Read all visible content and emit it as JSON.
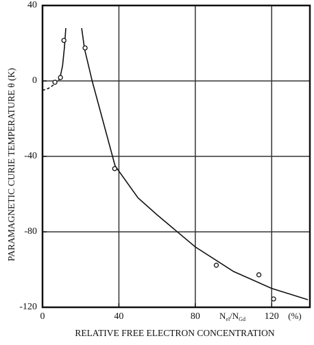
{
  "chart_data": {
    "type": "scatter",
    "xlabel": "RELATIVE FREE ELECTRON CONCENTRATION",
    "ylabel": "PARAMAGNETIC CURIE TEMPERATURE θ (K)",
    "unit_parts": [
      "N",
      "el",
      "/N",
      "Gd",
      "(%)"
    ],
    "x": [
      6.5,
      9.4,
      11.2,
      22.3,
      37.8,
      91,
      113.3,
      121
    ],
    "values": [
      -0.7,
      1.8,
      21.5,
      17.5,
      -46.5,
      -97.7,
      -102.8,
      -115.6
    ],
    "lines": [
      {
        "x": [
          0,
          3,
          6,
          9
        ],
        "y": [
          -5,
          -4,
          -2,
          1
        ],
        "dashed": true
      },
      {
        "x": [
          9,
          10.5,
          11.5,
          12.2
        ],
        "y": [
          1,
          8,
          18,
          28
        ],
        "dashed": false
      },
      {
        "x": [
          20.5,
          22,
          26,
          30,
          38,
          50,
          60,
          80,
          100,
          120,
          139
        ],
        "y": [
          28,
          17,
          0,
          -15,
          -45,
          -62,
          -71,
          -88,
          -101,
          -110,
          -116
        ],
        "dashed": false
      }
    ],
    "xlim": [
      0,
      140
    ],
    "ylim": [
      -120,
      40
    ],
    "xticks": [
      0,
      40,
      80,
      120
    ],
    "yticks": [
      40,
      0,
      -40,
      -80,
      -120
    ],
    "xgrid": [
      40,
      80,
      120
    ],
    "ygrid": [
      0,
      -40,
      -80
    ],
    "color": "#111111"
  }
}
